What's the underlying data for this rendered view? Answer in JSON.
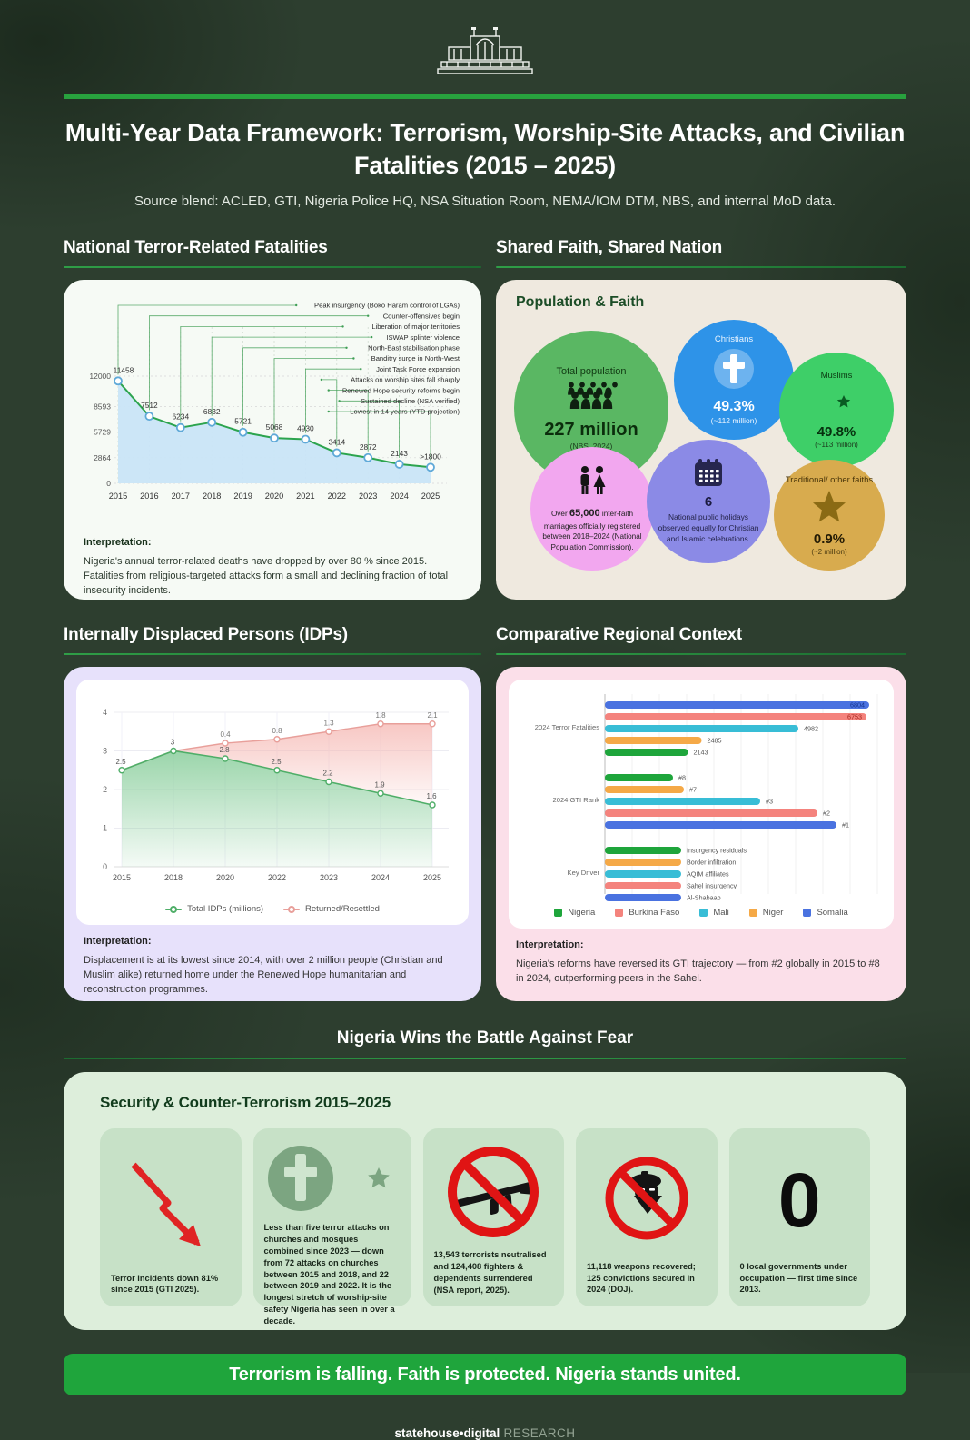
{
  "header": {
    "logo": "statehouse-building-icon",
    "title": "Multi-Year Data Framework: Terrorism, Worship-Site Attacks, and Civilian Fatalities (2015 – 2025)",
    "subtitle": "Source blend: ACLED, GTI, Nigeria Police HQ, NSA Situation Room, NEMA/IOM DTM, NBS, and internal MoD data."
  },
  "sections": {
    "fatalities": {
      "title": "National Terror-Related Fatalities",
      "interpretation_label": "Interpretation:",
      "interpretation": "Nigeria's annual terror-related deaths have dropped by over 80 % since 2015. Fatalities from religious-targeted attacks form a small and declining fraction of total insecurity incidents."
    },
    "faith": {
      "title": "Shared Faith, Shared Nation",
      "panel_title": "Population & Faith",
      "circles": [
        {
          "id": "pop",
          "icon": "people-icon",
          "bg": "#5ab763",
          "title": "Total population",
          "value": "227 million",
          "sub": "(NBS, 2024)"
        },
        {
          "id": "chr",
          "icon": "cross-icon",
          "bg": "#2e93e8",
          "title": "Christians",
          "value": "49.3%",
          "sub": "(~112 million)"
        },
        {
          "id": "mus",
          "icon": "crescent-star-icon",
          "bg": "#3ecf68",
          "title": "Muslims",
          "value": "49.8%",
          "sub": "(~113 million)"
        },
        {
          "id": "mar",
          "icon": "couple-icon",
          "bg": "#f2a7ef",
          "text_parts": [
            "Over ",
            "65,000",
            " inter-faith marriages officially registered between 2018–2024 (National Population Commission)."
          ]
        },
        {
          "id": "hol",
          "icon": "calendar-icon",
          "bg": "#8b8ae6",
          "value": "6",
          "text": "National public holidays observed equally for Christian and Islamic celebrations."
        },
        {
          "id": "tra",
          "icon": "star-icon",
          "bg": "#d8ab4e",
          "title": "Traditional/ other faiths",
          "value": "0.9%",
          "sub": "(~2 million)"
        }
      ]
    },
    "idps": {
      "title": "Internally Displaced Persons (IDPs)",
      "interpretation_label": "Interpretation:",
      "interpretation": "Displacement is at its lowest since 2014, with over 2 million people (Christian and Muslim alike) returned home under the Renewed Hope humanitarian and reconstruction programmes."
    },
    "regional": {
      "title": "Comparative Regional Context",
      "interpretation_label": "Interpretation:",
      "interpretation": "Nigeria's reforms have reversed its GTI trajectory — from #2 globally in 2015 to #8 in 2024, outperforming peers in the Sahel."
    },
    "wins": {
      "title": "Nigeria Wins the Battle Against Fear"
    },
    "security": {
      "title": "Security & Counter-Terrorism 2015–2025",
      "cards": [
        {
          "icon": "down-arrow-icon",
          "text": "Terror incidents down 81% since 2015 (GTI 2025)."
        },
        {
          "icon": "cross-crescent-icon",
          "text": "Less than five terror attacks on churches and mosques combined since 2023 — down from 72 attacks on churches between 2015 and 2018, and 22 between 2019 and 2022. It is the longest stretch of worship-site safety Nigeria has seen in over a decade."
        },
        {
          "icon": "no-rifle-icon",
          "text": "13,543 terrorists neutralised and 124,408 fighters & dependents surrendered (NSA report, 2025)."
        },
        {
          "icon": "no-terrorist-icon",
          "text": "11,118 weapons recovered; 125 convictions secured in 2024 (DOJ)."
        },
        {
          "icon": "zero-glyph",
          "zero": "0",
          "text": "0 local governments under occupation — first time since 2013."
        }
      ]
    },
    "banner": "Terrorism is falling. Faith is protected. Nigeria stands united.",
    "footer": {
      "brand": "statehouse•digital",
      "suffix": " RESEARCH"
    }
  },
  "chart_data": [
    {
      "id": "fatalities",
      "type": "line",
      "title": "National Terror-Related Fatalities",
      "x": [
        2015,
        2016,
        2017,
        2018,
        2019,
        2020,
        2021,
        2022,
        2023,
        2024,
        2025
      ],
      "values": [
        11458,
        7512,
        6234,
        6832,
        5721,
        5068,
        4930,
        3414,
        2872,
        2143,
        1800
      ],
      "value_labels": [
        "11458",
        "7512",
        "6234",
        "6832",
        "5721",
        "5068",
        "4930",
        "3414",
        "2872",
        "2143",
        ">1800"
      ],
      "yticks": [
        0,
        2864,
        5729,
        8593,
        12000
      ],
      "ylim": [
        0,
        12000
      ],
      "grid": true,
      "line_color": "#2ca44e",
      "fill_color": "#c9e5f7",
      "marker_stroke": "#5fa9d8",
      "annotations": [
        "Peak insurgency (Boko Haram control of LGAs)",
        "Counter-offensives begin",
        "Liberation of major territories",
        "ISWAP splinter violence",
        "North-East stabilisation phase",
        "Banditry surge in North-West",
        "Joint Task Force expansion",
        "Attacks on worship sites fall sharply",
        "Renewed Hope security reforms begin",
        "Sustained decline (NSA verified)",
        "Lowest in 14 years (YTD projection)"
      ]
    },
    {
      "id": "idps",
      "type": "area",
      "title": "Internally Displaced Persons (IDPs)",
      "x": [
        2015,
        2018,
        2020,
        2022,
        2023,
        2024,
        2025
      ],
      "series": [
        {
          "name": "Total IDPs (millions)",
          "values": [
            2.5,
            3,
            2.8,
            2.5,
            2.2,
            1.9,
            1.6
          ],
          "labels": [
            "2.5",
            "3",
            "2.8",
            "2.5",
            "2.2",
            "1.9",
            "1.6"
          ],
          "color": "#4fae68",
          "fill_top": "#79c78e"
        },
        {
          "name": "Returned/Resettled",
          "values": [
            0,
            0,
            0.4,
            0.8,
            1.3,
            1.8,
            2.1
          ],
          "labels": [
            "",
            "",
            "0.4",
            "0.8",
            "1.3",
            "1.8",
            "2.1"
          ],
          "color": "#e89f9a",
          "fill_top": "#f5b5b0",
          "stacked_on_first": true
        }
      ],
      "yticks": [
        0,
        1,
        2,
        3,
        4
      ],
      "ylim": [
        0,
        4
      ],
      "grid": true,
      "legend_position": "bottom"
    },
    {
      "id": "regional",
      "type": "bar",
      "title": "Comparative Regional Context",
      "orientation": "horizontal",
      "colors": {
        "nigeria": "#1ea53b",
        "burkina": "#f4837d",
        "mali": "#38bdd6",
        "niger": "#f5a947",
        "somalia": "#4a72e0"
      },
      "inside_label_colors": {
        "somalia": "#16348f",
        "burkina": "#a5261c"
      },
      "legend": [
        {
          "key": "nigeria",
          "name": "Nigeria"
        },
        {
          "key": "burkina",
          "name": "Burkina Faso"
        },
        {
          "key": "mali",
          "name": "Mali"
        },
        {
          "key": "niger",
          "name": "Niger"
        },
        {
          "key": "somalia",
          "name": "Somalia"
        }
      ],
      "groups": [
        {
          "label": "2024 Terror Fatalities",
          "bars": [
            {
              "country": "somalia",
              "pct": 97,
              "label": "6804",
              "inside": true
            },
            {
              "country": "burkina",
              "pct": 96,
              "label": "6753",
              "inside": true
            },
            {
              "country": "mali",
              "pct": 71,
              "label": "4982",
              "inside": false
            },
            {
              "country": "niger",
              "pct": 35.5,
              "label": "2485",
              "inside": false
            },
            {
              "country": "nigeria",
              "pct": 30.5,
              "label": "2143",
              "inside": false
            }
          ]
        },
        {
          "label": "2024 GTI Rank",
          "bars": [
            {
              "country": "nigeria",
              "pct": 25,
              "label": "#8",
              "inside": false
            },
            {
              "country": "niger",
              "pct": 29,
              "label": "#7",
              "inside": false
            },
            {
              "country": "mali",
              "pct": 57,
              "label": "#3",
              "inside": false
            },
            {
              "country": "burkina",
              "pct": 78,
              "label": "#2",
              "inside": false
            },
            {
              "country": "somalia",
              "pct": 85,
              "label": "#1",
              "inside": false
            }
          ]
        },
        {
          "label": "Key Driver",
          "bars": [
            {
              "country": "nigeria",
              "pct": 28,
              "label": "Insurgency residuals",
              "inside": false
            },
            {
              "country": "niger",
              "pct": 28,
              "label": "Border infiltration",
              "inside": false
            },
            {
              "country": "mali",
              "pct": 28,
              "label": "AQIM affiliates",
              "inside": false
            },
            {
              "country": "burkina",
              "pct": 28,
              "label": "Sahel insurgency",
              "inside": false
            },
            {
              "country": "somalia",
              "pct": 28,
              "label": "Al-Shabaab",
              "inside": false
            }
          ]
        }
      ]
    }
  ]
}
